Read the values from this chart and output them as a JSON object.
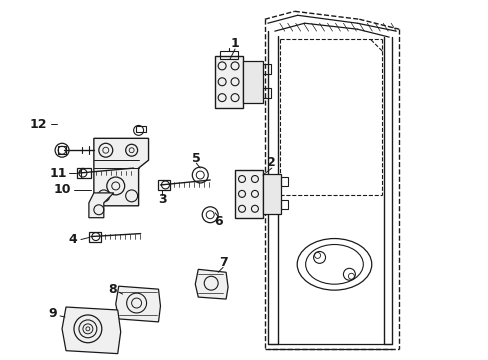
{
  "background_color": "#ffffff",
  "line_color": "#1a1a1a",
  "fig_width": 4.89,
  "fig_height": 3.6,
  "dpi": 100,
  "labels": {
    "1": [
      233,
      45,
      238,
      62
    ],
    "2": [
      272,
      162,
      270,
      177
    ],
    "3": [
      152,
      202,
      162,
      195
    ],
    "4": [
      78,
      240,
      92,
      238
    ],
    "5": [
      195,
      160,
      198,
      172
    ],
    "6": [
      210,
      225,
      210,
      216
    ],
    "7": [
      225,
      268,
      220,
      278
    ],
    "8": [
      118,
      293,
      130,
      295
    ],
    "9": [
      58,
      314,
      70,
      318
    ],
    "10": [
      62,
      188,
      92,
      190
    ],
    "11": [
      60,
      172,
      78,
      173
    ],
    "12": [
      40,
      122,
      62,
      124
    ]
  }
}
